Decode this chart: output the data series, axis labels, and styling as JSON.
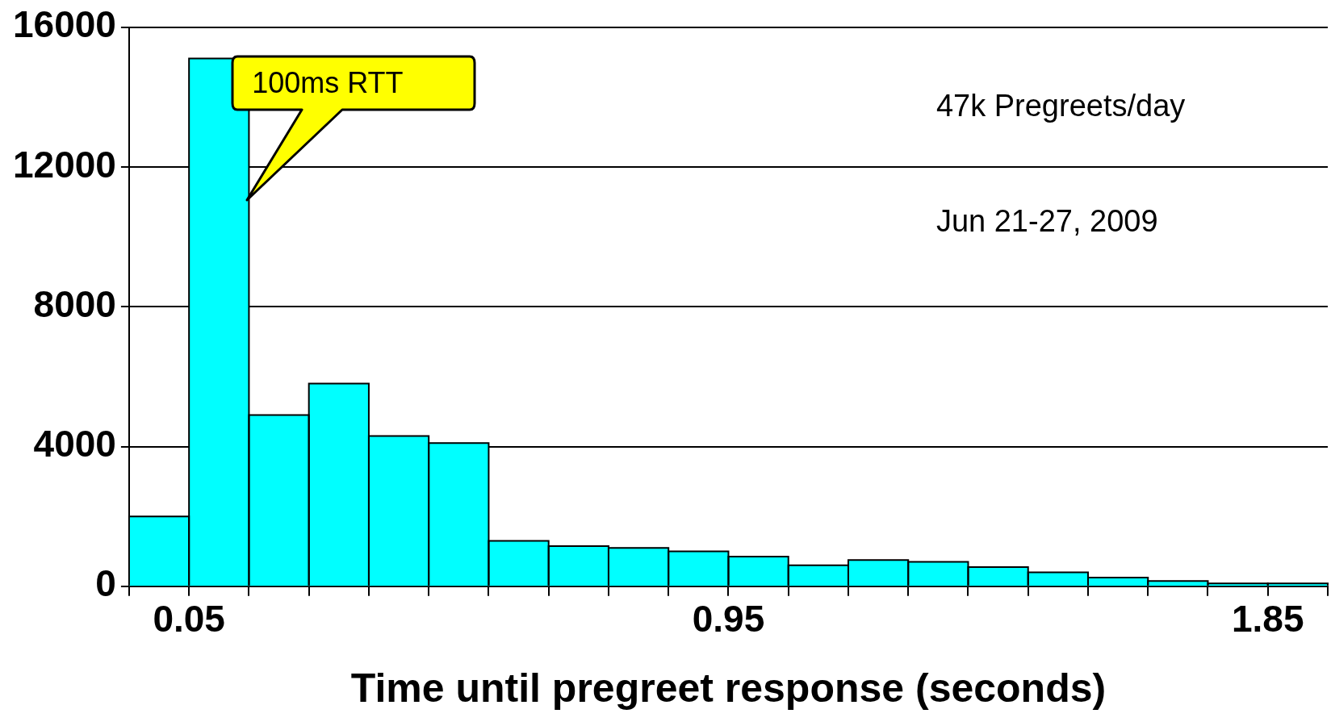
{
  "chart_data": {
    "type": "histogram",
    "xlabel": "Time until pregreet response (seconds)",
    "bins": [
      -0.05,
      0.05,
      0.15,
      0.25,
      0.35,
      0.45,
      0.55,
      0.65,
      0.75,
      0.85,
      0.95,
      1.05,
      1.15,
      1.25,
      1.35,
      1.45,
      1.55,
      1.65,
      1.75,
      1.85,
      1.95
    ],
    "values": [
      2000,
      15100,
      4900,
      5800,
      4300,
      4100,
      1300,
      1150,
      1100,
      1000,
      850,
      600,
      750,
      700,
      550,
      400,
      250,
      150,
      80,
      80
    ],
    "color": "#00ffff",
    "xlim": [
      -0.05,
      1.95
    ],
    "xticks": [
      {
        "value": -0.05,
        "label": null
      },
      0.05,
      {
        "value": 0.15,
        "label": null
      },
      {
        "value": 0.25,
        "label": null
      },
      {
        "value": 0.35,
        "label": null
      },
      {
        "value": 0.45,
        "label": null
      },
      {
        "value": 0.55,
        "label": null
      },
      {
        "value": 0.65,
        "label": null
      },
      {
        "value": 0.75,
        "label": null
      },
      {
        "value": 0.85,
        "label": null
      },
      0.95,
      {
        "value": 1.05,
        "label": null
      },
      {
        "value": 1.15,
        "label": null
      },
      {
        "value": 1.25,
        "label": null
      },
      {
        "value": 1.35,
        "label": null
      },
      {
        "value": 1.45,
        "label": null
      },
      {
        "value": 1.55,
        "label": null
      },
      {
        "value": 1.65,
        "label": null
      },
      {
        "value": 1.75,
        "label": null
      },
      1.85,
      {
        "value": 1.95,
        "label": null
      }
    ],
    "ylim": [
      0,
      16000
    ],
    "yticks": [
      0,
      4000,
      8000,
      12000,
      16000
    ],
    "grid": "y",
    "annotations": [
      "100ms RTT",
      "47k Pregreets/day",
      "Jun 21-27, 2009"
    ]
  }
}
